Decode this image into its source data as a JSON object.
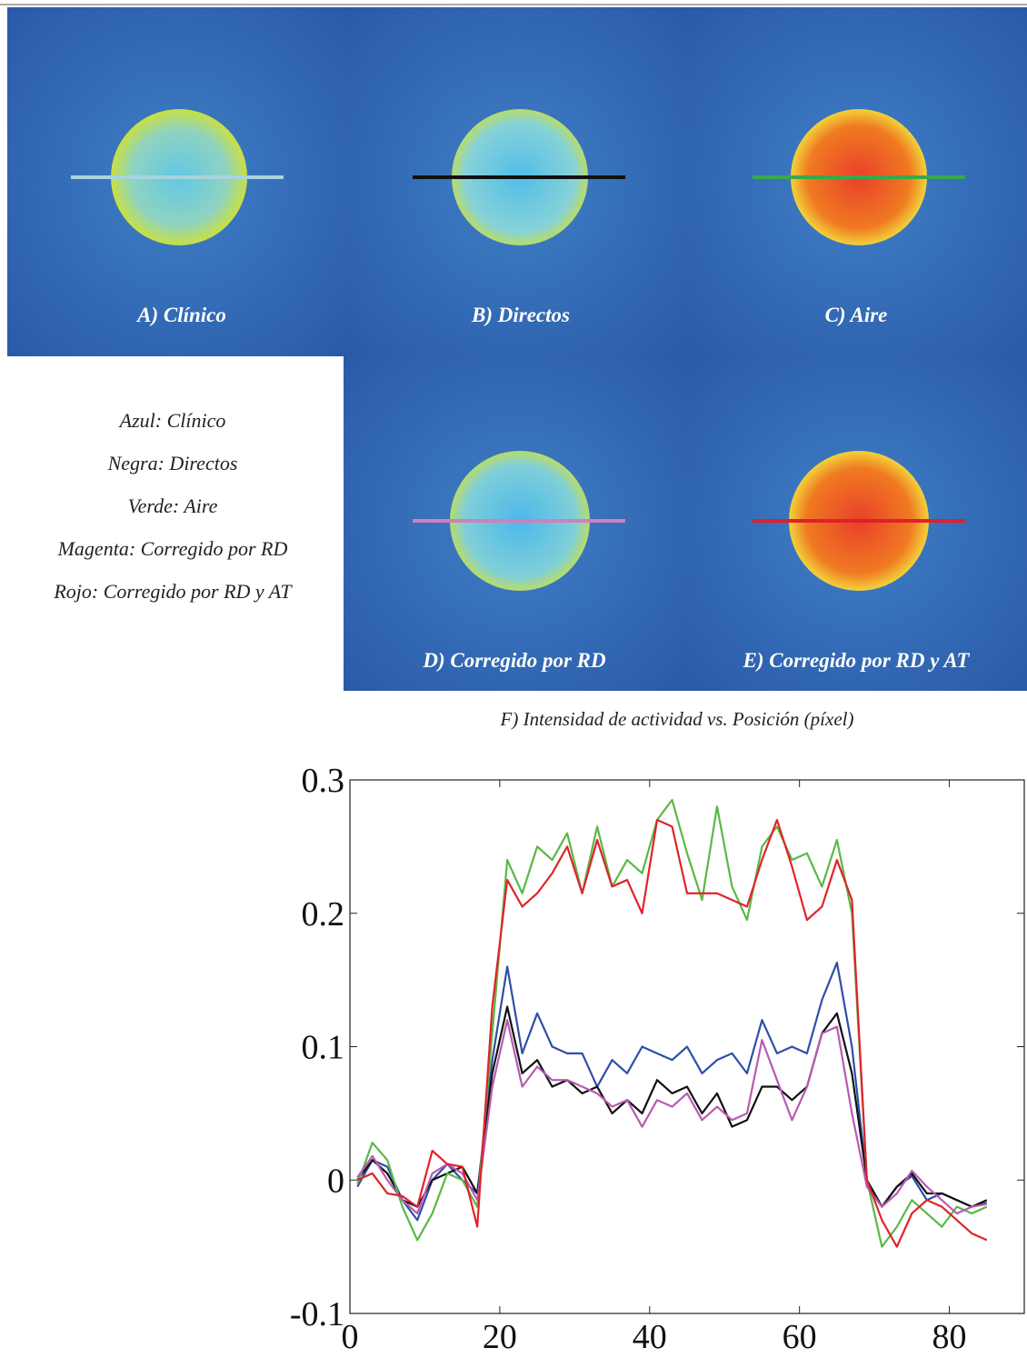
{
  "panels": [
    {
      "label": "A) Clínico"
    },
    {
      "label": "B) Directos"
    },
    {
      "label": "C) Aire"
    },
    {
      "label": "D) Corregido por RD"
    },
    {
      "label": "E) Corregido por RD y AT"
    }
  ],
  "chart_data": {
    "type": "line",
    "title": "F) Intensidad de actividad vs. Posición (píxel)",
    "x": [
      1,
      3,
      5,
      7,
      9,
      11,
      13,
      15,
      17,
      19,
      21,
      23,
      25,
      27,
      29,
      31,
      33,
      35,
      37,
      39,
      41,
      43,
      45,
      47,
      49,
      51,
      53,
      55,
      57,
      59,
      61,
      63,
      65,
      67,
      69,
      71,
      73,
      75,
      77,
      79,
      81,
      83,
      85
    ],
    "series": [
      {
        "name": "Azul: Clínico",
        "color": "#2e4fa8",
        "values": [
          -0.005,
          0.015,
          0.01,
          -0.015,
          -0.03,
          0.0,
          0.012,
          0.0,
          -0.01,
          0.09,
          0.16,
          0.095,
          0.125,
          0.1,
          0.095,
          0.095,
          0.07,
          0.09,
          0.08,
          0.1,
          0.095,
          0.09,
          0.1,
          0.08,
          0.09,
          0.095,
          0.08,
          0.12,
          0.095,
          0.1,
          0.095,
          0.135,
          0.163,
          0.1,
          0.0,
          -0.02,
          -0.005,
          0.003,
          -0.015,
          -0.01,
          -0.015,
          -0.02,
          -0.017
        ]
      },
      {
        "name": "Negra: Directos",
        "color": "#111111",
        "values": [
          0.0,
          0.015,
          0.005,
          -0.015,
          -0.02,
          0.0,
          0.005,
          0.01,
          -0.01,
          0.08,
          0.13,
          0.08,
          0.09,
          0.07,
          0.075,
          0.065,
          0.07,
          0.05,
          0.06,
          0.05,
          0.075,
          0.065,
          0.07,
          0.05,
          0.065,
          0.04,
          0.045,
          0.07,
          0.07,
          0.06,
          0.07,
          0.11,
          0.125,
          0.08,
          0.0,
          -0.02,
          -0.005,
          0.005,
          -0.01,
          -0.01,
          -0.015,
          -0.02,
          -0.015
        ]
      },
      {
        "name": "Verde: Aire",
        "color": "#5bb845",
        "values": [
          -0.003,
          0.028,
          0.015,
          -0.02,
          -0.045,
          -0.025,
          0.005,
          0.0,
          -0.02,
          0.11,
          0.24,
          0.215,
          0.25,
          0.24,
          0.26,
          0.215,
          0.265,
          0.22,
          0.24,
          0.23,
          0.27,
          0.285,
          0.245,
          0.21,
          0.28,
          0.22,
          0.195,
          0.25,
          0.265,
          0.24,
          0.245,
          0.22,
          0.255,
          0.2,
          0.0,
          -0.05,
          -0.035,
          -0.015,
          -0.025,
          -0.035,
          -0.02,
          -0.025,
          -0.02
        ]
      },
      {
        "name": "Magenta: Corregido por RD",
        "color": "#b85bb0",
        "values": [
          0.002,
          0.018,
          0.0,
          -0.015,
          -0.025,
          0.005,
          0.012,
          0.005,
          -0.015,
          0.07,
          0.12,
          0.07,
          0.085,
          0.075,
          0.075,
          0.07,
          0.065,
          0.055,
          0.06,
          0.04,
          0.06,
          0.055,
          0.065,
          0.045,
          0.055,
          0.045,
          0.05,
          0.105,
          0.075,
          0.045,
          0.07,
          0.11,
          0.115,
          0.05,
          -0.005,
          -0.02,
          -0.01,
          0.007,
          -0.005,
          -0.015,
          -0.025,
          -0.02,
          -0.018
        ]
      },
      {
        "name": "Rojo: Corregido por RD y AT",
        "color": "#e0232b",
        "values": [
          0.0,
          0.005,
          -0.01,
          -0.012,
          -0.02,
          0.022,
          0.012,
          0.01,
          -0.035,
          0.13,
          0.225,
          0.205,
          0.215,
          0.23,
          0.25,
          0.215,
          0.255,
          0.22,
          0.225,
          0.2,
          0.27,
          0.265,
          0.215,
          0.215,
          0.215,
          0.21,
          0.205,
          0.24,
          0.27,
          0.235,
          0.195,
          0.205,
          0.24,
          0.21,
          0.0,
          -0.03,
          -0.05,
          -0.025,
          -0.015,
          -0.02,
          -0.03,
          -0.04,
          -0.045
        ]
      }
    ],
    "xlim": [
      0,
      90
    ],
    "ylim": [
      -0.1,
      0.3
    ],
    "xticks": [
      0,
      20,
      40,
      60,
      80
    ],
    "yticks": [
      -0.1,
      0,
      0.1,
      0.2,
      0.3
    ]
  }
}
